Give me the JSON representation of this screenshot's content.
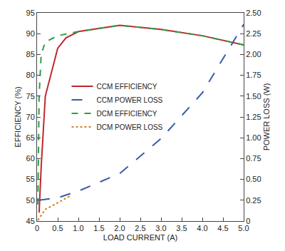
{
  "chart_data": {
    "type": "line",
    "x_label": "LOAD CURRENT (A)",
    "y_label": "EFFICIENCY (%)",
    "y2_label": "POWER LOSS (W)",
    "xlim": [
      0,
      5
    ],
    "xticks": [
      0,
      0.5,
      {
        "value": 1,
        "label": "1.0"
      },
      1.5,
      {
        "value": 2,
        "label": "2.0"
      },
      2.5,
      {
        "value": 3,
        "label": "3.0"
      },
      3.5,
      {
        "value": 4,
        "label": "4.0"
      },
      4.5,
      {
        "value": 5,
        "label": "5.0"
      }
    ],
    "ylim": [
      45,
      95
    ],
    "yticks": [
      45,
      50,
      55,
      60,
      65,
      70,
      75,
      80,
      85,
      90,
      95
    ],
    "y2lim": [
      0,
      2.5
    ],
    "y2ticks": [
      0,
      0.25,
      {
        "value": 0.5,
        "label": "0.50"
      },
      0.75,
      {
        "value": 1,
        "label": "1.00"
      },
      1.25,
      {
        "value": 1.5,
        "label": "1.50"
      },
      1.75,
      {
        "value": 2,
        "label": "2.00"
      },
      2.25,
      {
        "value": 2.5,
        "label": "2.50"
      }
    ],
    "grid": false,
    "legend": "center",
    "series": [
      {
        "name": "CCM EFFICIENCY",
        "color": "#c1272d",
        "line_style": "solid",
        "x": [
          0.05,
          0.1,
          0.2,
          0.5,
          0.7,
          1.0,
          2.0,
          3.0,
          4.0,
          5.0
        ],
        "values": [
          47,
          58,
          75,
          86.5,
          89,
          90.5,
          92,
          91,
          89.5,
          87.3
        ]
      },
      {
        "name": "CCM POWER LOSS",
        "color": "#3a5ba9",
        "line_style": "longdash",
        "axis": "y2",
        "x": [
          0.05,
          0.5,
          1.0,
          2.0,
          3.0,
          4.0,
          5.0
        ],
        "values": [
          0.25,
          0.28,
          0.36,
          0.57,
          0.99,
          1.54,
          2.36
        ]
      },
      {
        "name": "DCM EFFICIENCY",
        "color": "#2e9e48",
        "line_style": "dash",
        "x": [
          0.02,
          0.05,
          0.1,
          0.2,
          0.5,
          1.0,
          2.0,
          3.0,
          4.0,
          5.0
        ],
        "values": [
          49,
          75,
          85,
          88,
          89.5,
          90.5,
          92,
          91,
          89.5,
          87.3
        ]
      },
      {
        "name": "DCM POWER LOSS",
        "color": "#d4822a",
        "line_style": "dot",
        "axis": "y2",
        "x": [
          0.02,
          0.2,
          0.5,
          0.8
        ],
        "values": [
          0.01,
          0.14,
          0.22,
          0.3
        ]
      }
    ]
  }
}
